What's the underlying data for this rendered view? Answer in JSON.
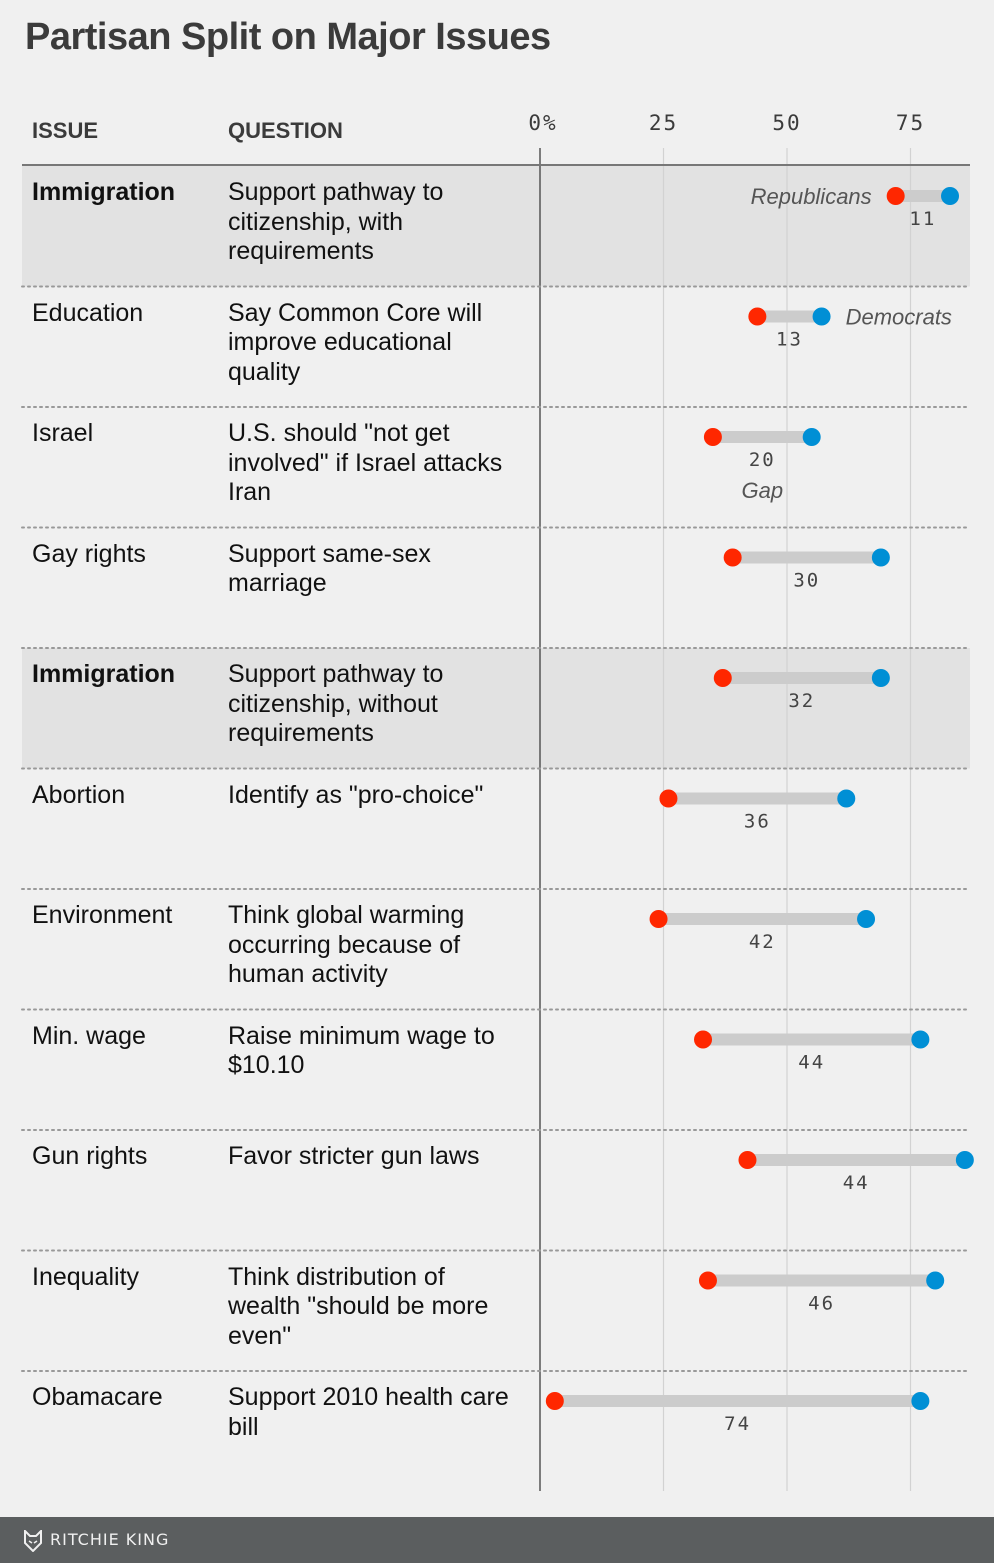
{
  "header": {
    "title": "Partisan Split on Major Issues"
  },
  "columns": {
    "issue": "ISSUE",
    "question": "QUESTION"
  },
  "legend": {
    "republicans": "Republicans",
    "democrats": "Democrats",
    "gap": "Gap"
  },
  "footer": {
    "author": "RITCHIE KING",
    "logo_icon": "fox-logo-icon"
  },
  "colors": {
    "republican": "#ff2700",
    "democrat": "#008fd5",
    "bar": "#cccccc",
    "highlight": "#e2e2e2",
    "background": "#f0f0f0"
  },
  "chart_data": {
    "type": "dumbbell",
    "title": "Partisan Split on Major Issues",
    "xlabel": "",
    "x_ticks": [
      "0%",
      "25",
      "50",
      "75"
    ],
    "x_tick_values": [
      0,
      25,
      50,
      75
    ],
    "xlim": [
      0,
      86
    ],
    "grid": true,
    "series": [
      {
        "name": "Republicans",
        "color": "#ff2700"
      },
      {
        "name": "Democrats",
        "color": "#008fd5"
      }
    ],
    "rows": [
      {
        "issue": "Immigration",
        "question": "Support pathway to citizenship, with requirements",
        "republicans": 72,
        "democrats": 83,
        "gap": 11,
        "highlight": true
      },
      {
        "issue": "Education",
        "question": "Say Common Core will improve educational quality",
        "republicans": 44,
        "democrats": 57,
        "gap": 13,
        "highlight": false
      },
      {
        "issue": "Israel",
        "question": "U.S. should \"not get involved\" if Israel attacks Iran",
        "republicans": 35,
        "democrats": 55,
        "gap": 20,
        "highlight": false
      },
      {
        "issue": "Gay rights",
        "question": "Support same-sex marriage",
        "republicans": 39,
        "democrats": 69,
        "gap": 30,
        "highlight": false
      },
      {
        "issue": "Immigration",
        "question": "Support pathway to citizenship, without requirements",
        "republicans": 37,
        "democrats": 69,
        "gap": 32,
        "highlight": true
      },
      {
        "issue": "Abortion",
        "question": "Identify as \"pro-choice\"",
        "republicans": 26,
        "democrats": 62,
        "gap": 36,
        "highlight": false
      },
      {
        "issue": "Environment",
        "question": "Think global warming occurring because of human activity",
        "republicans": 24,
        "democrats": 66,
        "gap": 42,
        "highlight": false
      },
      {
        "issue": "Min. wage",
        "question": "Raise minimum wage to $10.10",
        "republicans": 33,
        "democrats": 77,
        "gap": 44,
        "highlight": false
      },
      {
        "issue": "Gun rights",
        "question": "Favor stricter gun laws",
        "republicans": 42,
        "democrats": 86,
        "gap": 44,
        "highlight": false
      },
      {
        "issue": "Inequality",
        "question": "Think distribution of wealth \"should be more even\"",
        "republicans": 34,
        "democrats": 80,
        "gap": 46,
        "highlight": false
      },
      {
        "issue": "Obamacare",
        "question": "Support 2010 health care bill",
        "republicans": 3,
        "democrats": 77,
        "gap": 74,
        "highlight": false
      }
    ]
  }
}
